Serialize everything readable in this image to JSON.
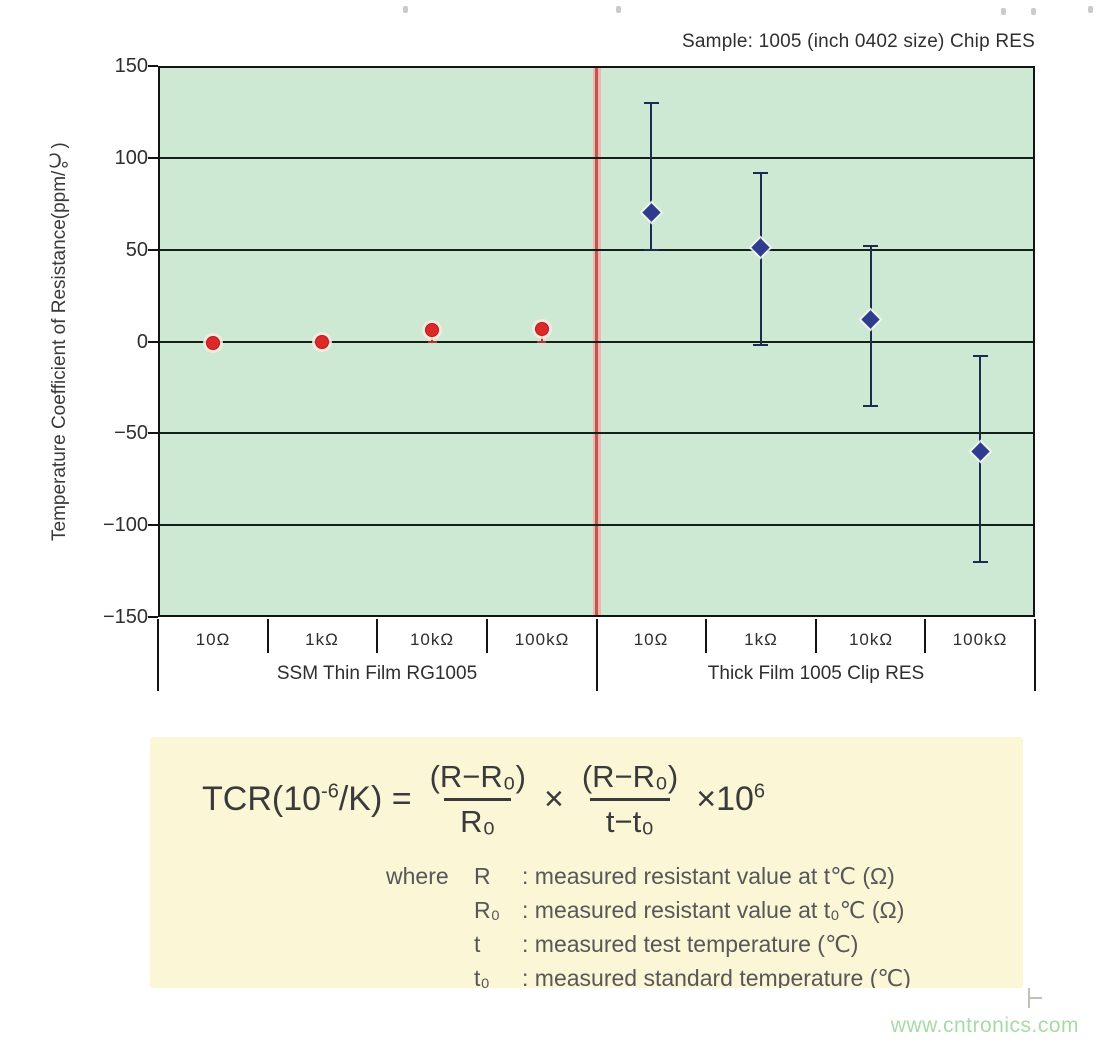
{
  "chart_data": {
    "type": "scatter",
    "title": "Sample: 1005 (inch 0402 size) Chip RES",
    "ylabel": "Temperature Coefficient of Resistance(ppm/℃)",
    "xlabel": "",
    "ylim": [
      -150,
      150
    ],
    "yticks": [
      150,
      100,
      50,
      0,
      -50,
      -100,
      -150
    ],
    "grid": "horizontal",
    "legend_position": "none",
    "categories": [
      "10Ω",
      "1kΩ",
      "10kΩ",
      "100kΩ",
      "10Ω",
      "1kΩ",
      "10kΩ",
      "100kΩ"
    ],
    "group_divider_after_category": 4,
    "series": [
      {
        "name": "SSM Thin Film RG1005",
        "marker": "circle",
        "color": "#dd2a28",
        "error_color": "#b03530",
        "points": [
          {
            "cat": "10Ω",
            "value": -1,
            "err_low": -3,
            "err_high": 1
          },
          {
            "cat": "1kΩ",
            "value": 0,
            "err_low": -2,
            "err_high": 2
          },
          {
            "cat": "10kΩ",
            "value": 6,
            "err_low": 0,
            "err_high": 8
          },
          {
            "cat": "100kΩ",
            "value": 7,
            "err_low": 0,
            "err_high": 9
          }
        ]
      },
      {
        "name": "Thick Film 1005 Clip RES",
        "marker": "diamond",
        "color": "#2f3b8c",
        "error_color": "#1c2b50",
        "points": [
          {
            "cat": "10Ω",
            "value": 70,
            "err_low": 50,
            "err_high": 130
          },
          {
            "cat": "1kΩ",
            "value": 51,
            "err_low": -2,
            "err_high": 92
          },
          {
            "cat": "10kΩ",
            "value": 12,
            "err_low": -35,
            "err_high": 52
          },
          {
            "cat": "100kΩ",
            "value": -60,
            "err_low": -120,
            "err_high": -8
          }
        ]
      }
    ],
    "colors": {
      "plot_background": "#cde8d3",
      "grid": "#13211a",
      "frame": "#141414",
      "divider_core": "#bd5750",
      "divider_halo": "#eeb7ad"
    }
  },
  "formula": {
    "lhs_pre": "TCR(10",
    "lhs_exp": "-6",
    "lhs_post": "/K) =",
    "frac1_num": "(R−R₀)",
    "frac1_den": "R₀",
    "times": "×",
    "frac2_num": "(R−R₀)",
    "frac2_den": "t−t₀",
    "mult_pre": "×10",
    "mult_exp": "6",
    "where_label": "where",
    "where": [
      {
        "sym": "R",
        "desc": ": measured resistant value at t℃ (Ω)"
      },
      {
        "sym": "R₀",
        "desc": ": measured resistant value at t₀℃ (Ω)"
      },
      {
        "sym": "t",
        "desc": ": measured test temperature (℃)"
      },
      {
        "sym": "t₀",
        "desc": ": measured standard temperature (℃)"
      }
    ]
  },
  "watermark": "www.cntronics.com"
}
